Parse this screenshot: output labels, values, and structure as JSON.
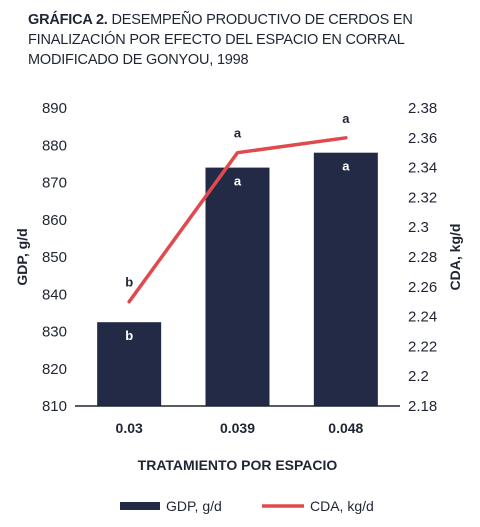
{
  "header": {
    "lead": "GRÁFICA 2.",
    "text": "DESEMPEÑO PRODUCTIVO DE CERDOS EN FINALIZACIÓN POR EFECTO DEL ESPACIO EN CORRAL MODIFICADO DE GONYOU, 1998"
  },
  "chart_data": {
    "type": "bar",
    "title": "GRÁFICA 2. DESEMPEÑO PRODUCTIVO DE CERDOS EN FINALIZACIÓN POR EFECTO DEL ESPACIO EN CORRAL MODIFICADO DE GONYOU, 1998",
    "categories": [
      "0.03",
      "0.039",
      "0.048"
    ],
    "xlabel": "TRATAMIENTO POR ESPACIO",
    "series": [
      {
        "name": "GDP, g/d",
        "kind": "bar",
        "axis": "left",
        "values": [
          832.5,
          874,
          878
        ],
        "labels": [
          "b",
          "a",
          "a"
        ],
        "color": "#232a45"
      },
      {
        "name": "CDA, kg/d",
        "kind": "line",
        "axis": "right",
        "values": [
          2.25,
          2.35,
          2.36
        ],
        "labels": [
          "b",
          "a",
          "a"
        ],
        "color": "#e04a4f"
      }
    ],
    "ylabel": "GDP, g/d",
    "ylim": [
      810,
      890
    ],
    "yticks": [
      "810",
      "820",
      "830",
      "840",
      "850",
      "860",
      "870",
      "880",
      "890"
    ],
    "y2label": "CDA, kg/d",
    "y2lim": [
      2.18,
      2.38
    ],
    "y2ticks": [
      "2.18",
      "2.2",
      "2.22",
      "2.24",
      "2.26",
      "2.28",
      "2.3",
      "2.32",
      "2.34",
      "2.36",
      "2.38"
    ],
    "grid": false,
    "legend": "bottom"
  }
}
